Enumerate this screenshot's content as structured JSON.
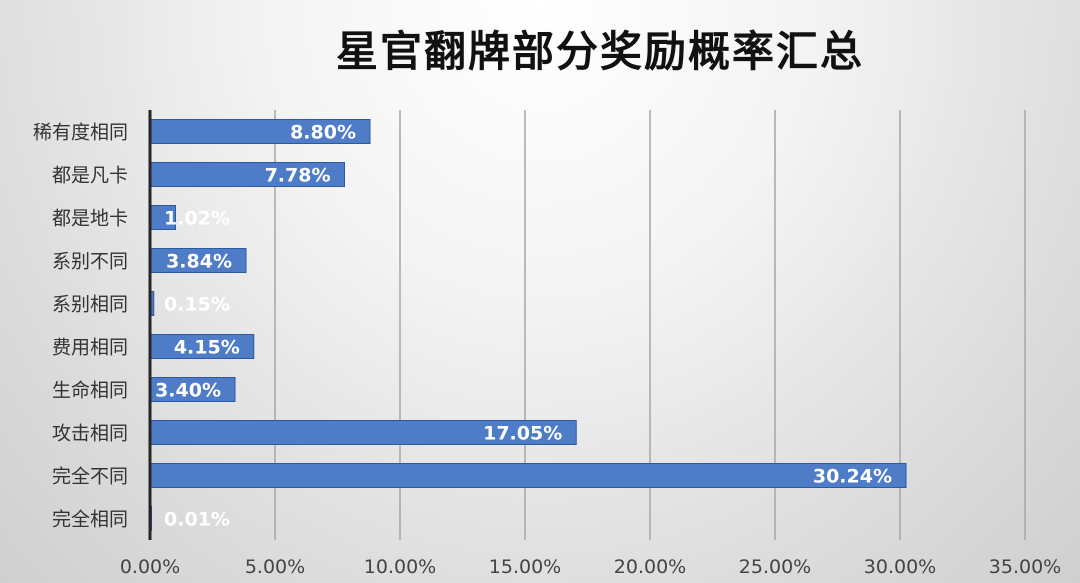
{
  "title": "星官翻牌部分奖励概率汇总",
  "colors": {
    "bar": "#4f7cc6",
    "bar_dark": "#2c5aa0",
    "axis": "#262626",
    "grid": "#a6a6a6"
  },
  "chart_data": {
    "type": "bar",
    "orientation": "horizontal",
    "title": "星官翻牌部分奖励概率汇总",
    "xlabel": "",
    "ylabel": "",
    "xlim": [
      0,
      35
    ],
    "x_ticks": [
      0,
      5,
      10,
      15,
      20,
      25,
      30,
      35
    ],
    "x_tick_labels": [
      "0.00%",
      "5.00%",
      "10.00%",
      "15.00%",
      "20.00%",
      "25.00%",
      "30.00%",
      "35.00%"
    ],
    "grid": "vertical",
    "legend": "none",
    "categories": [
      "稀有度相同",
      "都是凡卡",
      "都是地卡",
      "系别不同",
      "系别相同",
      "费用相同",
      "生命相同",
      "攻击相同",
      "完全不同",
      "完全相同"
    ],
    "values": [
      8.8,
      7.78,
      1.02,
      3.84,
      0.15,
      4.15,
      3.4,
      17.05,
      30.24,
      0.01
    ],
    "data_labels": [
      "8.80%",
      "7.78%",
      "1.02%",
      "3.84%",
      "0.15%",
      "4.15%",
      "3.40%",
      "17.05%",
      "30.24%",
      "0.01%"
    ]
  }
}
